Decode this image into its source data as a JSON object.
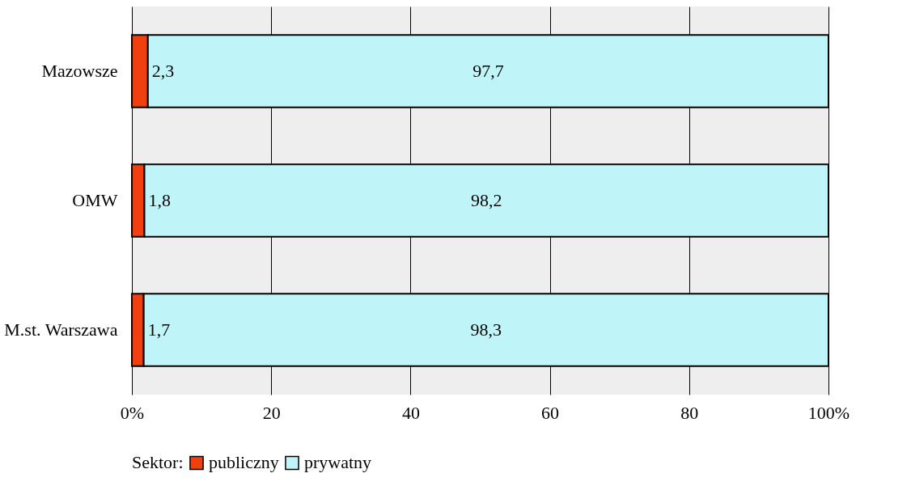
{
  "chart_data": {
    "type": "bar",
    "orientation": "horizontal",
    "stacked": true,
    "categories": [
      "Mazowsze",
      "OMW",
      "M.st. Warszawa"
    ],
    "series": [
      {
        "name": "publiczny",
        "color": "#f0400f",
        "values": [
          2.3,
          1.8,
          1.7
        ],
        "value_labels": [
          "2,3",
          "1,8",
          "1,7"
        ]
      },
      {
        "name": "prywatny",
        "color": "#bff5f9",
        "values": [
          97.7,
          98.2,
          98.3
        ],
        "value_labels": [
          "97,7",
          "98,2",
          "98,3"
        ]
      }
    ],
    "xlim": [
      0,
      100
    ],
    "xticks": [
      {
        "value": 0,
        "label": "0%"
      },
      20,
      40,
      60,
      80,
      {
        "value": 100,
        "label": "100%"
      }
    ],
    "grid": "x",
    "legend": "bottom",
    "legend_title": "Sektor:"
  }
}
